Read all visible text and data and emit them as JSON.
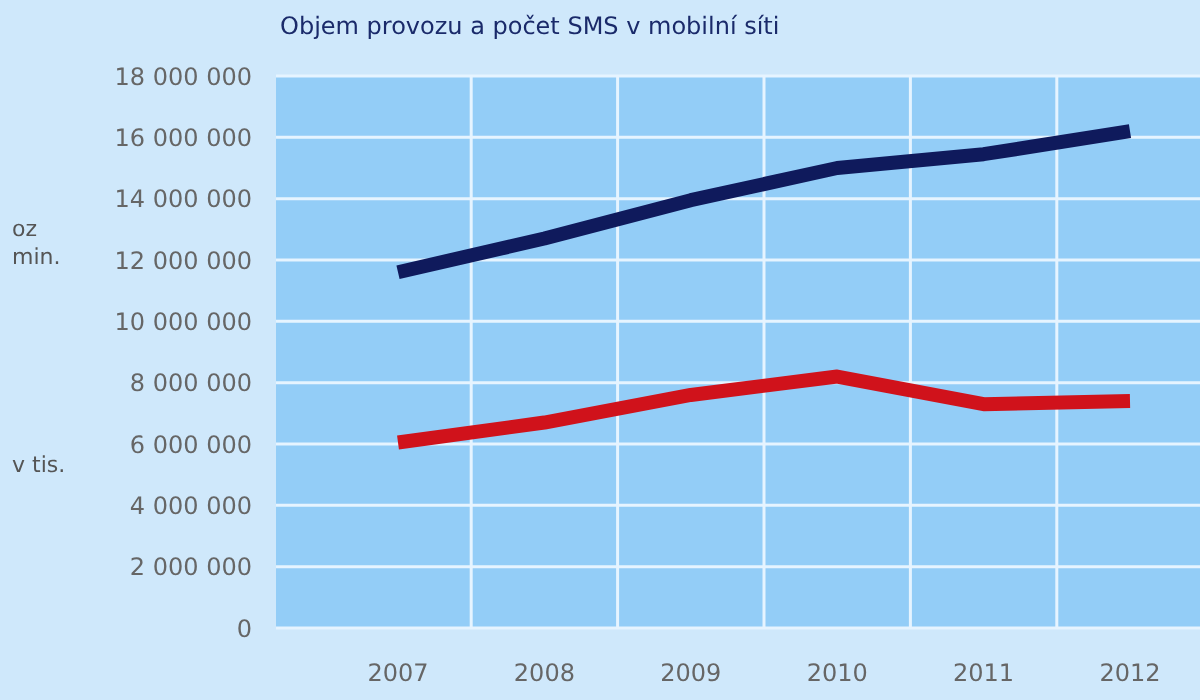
{
  "chart_data": {
    "type": "line",
    "title": "Objem provozu a počet SMS v mobilní síti",
    "categories": [
      "2007",
      "2008",
      "2009",
      "2010",
      "2011",
      "2012"
    ],
    "series": [
      {
        "color": "#0f1a5c",
        "values": [
          11600000,
          12700000,
          13950000,
          15000000,
          15450000,
          16200000
        ]
      },
      {
        "color": "#d0121b",
        "values": [
          6050000,
          6700000,
          7600000,
          8200000,
          7300000,
          7400000
        ]
      }
    ],
    "ylim": [
      0,
      18000000
    ],
    "yticks": [
      0,
      2000000,
      4000000,
      6000000,
      8000000,
      10000000,
      12000000,
      14000000,
      16000000,
      18000000
    ],
    "grid": true,
    "marker": "none",
    "line_style": "solid",
    "annotations": [
      "oz min.",
      "v tis."
    ]
  }
}
